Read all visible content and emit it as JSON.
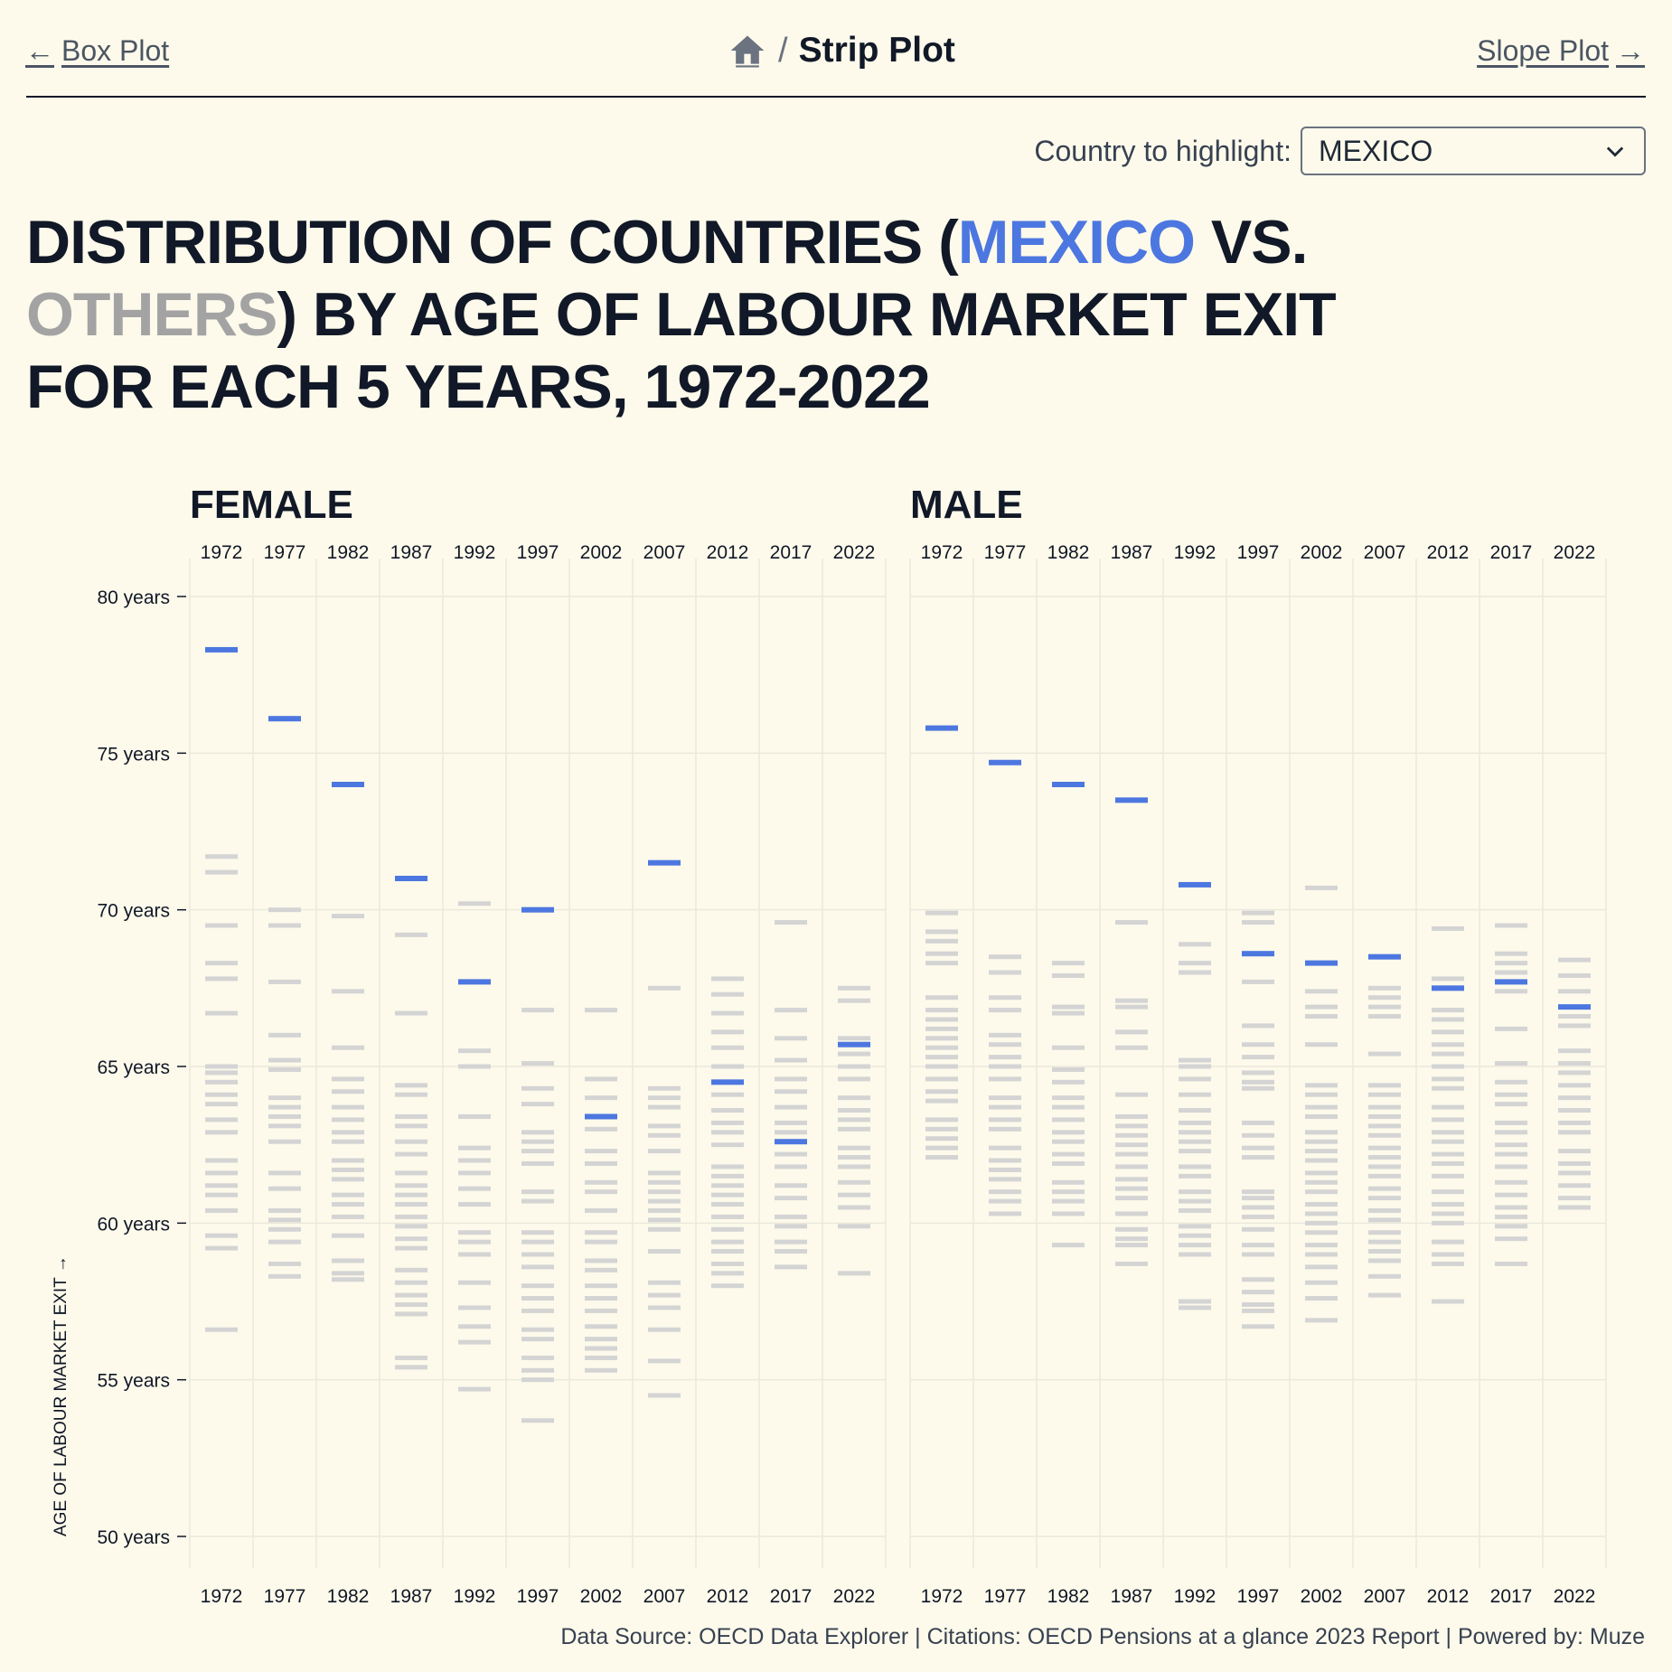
{
  "nav": {
    "prev_label": "Box Plot",
    "next_label": "Slope Plot",
    "current": "Strip Plot",
    "separator": "/"
  },
  "control": {
    "label": "Country to highlight:",
    "selected": "MEXICO"
  },
  "title": {
    "part1": "DISTRIBUTION OF COUNTRIES (",
    "highlight": "MEXICO",
    "part2": " vs. ",
    "others": "OTHERS",
    "part3": ") BY AGE OF LABOUR MARKET EXIT FOR EACH 5 YEARS, 1972-2022"
  },
  "footer": "Data Source: OECD Data Explorer | Citations: OECD Pensions at a glance 2023 Report | Powered by: Muze",
  "colors": {
    "highlight": "#4d77e0",
    "others": "#d4d4d4",
    "grid": "#ebe8dc",
    "text": "#111827"
  },
  "chart_data": {
    "type": "strip",
    "ylabel": "AGE OF LABOUR MARKET EXIT →",
    "ylim": [
      50,
      80
    ],
    "yticks": [
      {
        "value": 80,
        "label": "80 years"
      },
      {
        "value": 75,
        "label": "75 years"
      },
      {
        "value": 70,
        "label": "70 years"
      },
      {
        "value": 65,
        "label": "65 years"
      },
      {
        "value": 60,
        "label": "60 years"
      },
      {
        "value": 55,
        "label": "55 years"
      },
      {
        "value": 50,
        "label": "50 years"
      }
    ],
    "years": [
      "1972",
      "1977",
      "1982",
      "1987",
      "1992",
      "1997",
      "2002",
      "2007",
      "2012",
      "2017",
      "2022"
    ],
    "highlight_country": "MEXICO",
    "panels": [
      {
        "name": "FEMALE",
        "highlight": [
          78.3,
          76.1,
          74.0,
          71.0,
          67.7,
          70.0,
          63.4,
          71.5,
          64.5,
          62.6,
          65.7
        ],
        "others": [
          [
            71.7,
            71.2,
            69.5,
            68.3,
            67.8,
            66.7,
            65.0,
            64.8,
            64.5,
            64.1,
            63.8,
            63.3,
            62.9,
            62.0,
            61.6,
            61.2,
            60.9,
            60.4,
            59.6,
            59.2,
            56.6
          ],
          [
            70.0,
            69.5,
            67.7,
            66.0,
            65.2,
            64.9,
            64.0,
            63.7,
            63.4,
            63.1,
            62.6,
            61.6,
            61.1,
            60.4,
            60.1,
            59.8,
            59.4,
            58.7,
            58.3
          ],
          [
            69.8,
            67.4,
            65.6,
            64.6,
            64.2,
            63.7,
            63.3,
            62.9,
            62.6,
            62.0,
            61.7,
            61.4,
            60.9,
            60.6,
            60.2,
            59.6,
            58.8,
            58.4,
            58.2
          ],
          [
            69.2,
            66.7,
            64.4,
            64.1,
            63.4,
            63.1,
            62.6,
            62.2,
            61.6,
            61.2,
            60.9,
            60.6,
            60.2,
            59.9,
            59.5,
            59.2,
            58.5,
            58.1,
            57.7,
            57.4,
            57.1,
            55.7,
            55.4
          ],
          [
            70.2,
            65.5,
            65.0,
            63.4,
            62.4,
            62.0,
            61.6,
            61.1,
            60.6,
            59.7,
            59.4,
            59.0,
            58.1,
            57.3,
            56.7,
            56.2,
            54.7
          ],
          [
            66.8,
            65.1,
            64.3,
            63.8,
            62.9,
            62.6,
            62.3,
            61.9,
            61.0,
            60.7,
            59.7,
            59.4,
            59.0,
            58.6,
            58.0,
            57.6,
            57.2,
            56.6,
            56.3,
            55.7,
            55.3,
            55.0,
            53.7
          ],
          [
            66.8,
            64.6,
            64.0,
            63.0,
            62.3,
            61.9,
            61.3,
            61.0,
            60.4,
            59.7,
            59.4,
            58.8,
            58.5,
            58.0,
            57.6,
            57.2,
            56.7,
            56.3,
            56.0,
            55.7,
            55.3
          ],
          [
            67.5,
            64.3,
            64.0,
            63.7,
            63.1,
            62.8,
            62.3,
            61.6,
            61.3,
            61.0,
            60.7,
            60.4,
            60.1,
            59.8,
            59.1,
            58.1,
            57.7,
            57.3,
            56.6,
            55.6,
            54.5
          ],
          [
            67.8,
            67.3,
            66.7,
            66.1,
            65.6,
            65.0,
            64.1,
            63.6,
            63.2,
            62.9,
            62.5,
            61.8,
            61.5,
            61.2,
            60.9,
            60.6,
            60.2,
            59.8,
            59.4,
            59.1,
            58.7,
            58.4,
            58.0
          ],
          [
            69.6,
            66.8,
            65.9,
            65.2,
            64.6,
            64.2,
            63.7,
            63.2,
            62.9,
            62.2,
            61.8,
            61.2,
            60.8,
            60.2,
            59.9,
            59.4,
            59.1,
            58.6
          ],
          [
            67.5,
            67.1,
            65.9,
            65.4,
            65.0,
            64.6,
            64.0,
            63.6,
            63.3,
            63.0,
            62.4,
            62.1,
            61.8,
            61.3,
            60.9,
            60.5,
            59.9,
            58.4
          ]
        ]
      },
      {
        "name": "MALE",
        "highlight": [
          75.8,
          74.7,
          74.0,
          73.5,
          70.8,
          68.6,
          68.3,
          68.5,
          67.5,
          67.7,
          66.9
        ],
        "others": [
          [
            69.9,
            69.3,
            69.0,
            68.6,
            68.3,
            67.2,
            66.8,
            66.5,
            66.2,
            65.9,
            65.6,
            65.3,
            65.0,
            64.6,
            64.2,
            63.9,
            63.3,
            63.0,
            62.7,
            62.4,
            62.1
          ],
          [
            68.5,
            68.0,
            67.2,
            66.8,
            66.0,
            65.7,
            65.3,
            65.0,
            64.6,
            64.0,
            63.7,
            63.3,
            63.0,
            62.4,
            62.0,
            61.7,
            61.4,
            61.0,
            60.7,
            60.3
          ],
          [
            68.3,
            67.9,
            66.9,
            66.7,
            65.6,
            64.9,
            64.5,
            64.0,
            63.7,
            63.3,
            62.9,
            62.6,
            62.2,
            61.9,
            61.3,
            61.0,
            60.7,
            60.3,
            59.3
          ],
          [
            69.6,
            67.1,
            66.9,
            66.1,
            65.6,
            64.1,
            63.4,
            63.1,
            62.8,
            62.5,
            62.2,
            61.8,
            61.4,
            61.1,
            60.8,
            60.3,
            59.8,
            59.5,
            59.3,
            58.7
          ],
          [
            68.9,
            68.3,
            68.0,
            65.2,
            65.0,
            64.6,
            64.1,
            63.6,
            63.2,
            62.9,
            62.6,
            62.3,
            61.8,
            61.5,
            61.0,
            60.7,
            60.4,
            59.9,
            59.6,
            59.3,
            59.0,
            57.5,
            57.3
          ],
          [
            69.9,
            69.6,
            67.7,
            66.3,
            65.7,
            65.3,
            64.8,
            64.5,
            64.3,
            63.2,
            62.8,
            62.4,
            62.1,
            61.0,
            60.8,
            60.5,
            60.2,
            59.8,
            59.3,
            59.0,
            58.2,
            57.8,
            57.4,
            57.2,
            56.7
          ],
          [
            70.7,
            67.4,
            66.9,
            66.6,
            65.7,
            64.4,
            64.1,
            63.7,
            63.4,
            62.9,
            62.6,
            62.3,
            62.0,
            61.6,
            61.3,
            61.0,
            60.6,
            60.3,
            60.0,
            59.7,
            59.3,
            59.0,
            58.6,
            58.1,
            57.6,
            56.9
          ],
          [
            67.5,
            67.2,
            66.9,
            66.6,
            65.4,
            64.4,
            64.1,
            63.7,
            63.4,
            63.1,
            62.8,
            62.4,
            62.1,
            61.8,
            61.5,
            61.1,
            60.8,
            60.4,
            60.1,
            59.7,
            59.4,
            59.1,
            58.8,
            58.3,
            57.7
          ],
          [
            69.4,
            67.8,
            66.8,
            66.5,
            66.1,
            65.7,
            65.4,
            65.0,
            64.6,
            64.3,
            63.7,
            63.3,
            62.9,
            62.6,
            62.2,
            61.9,
            61.5,
            61.0,
            60.6,
            60.3,
            60.0,
            59.4,
            59.0,
            58.7,
            57.5
          ],
          [
            69.5,
            68.6,
            68.3,
            68.0,
            67.4,
            66.2,
            65.1,
            64.5,
            64.1,
            63.8,
            63.2,
            62.9,
            62.5,
            62.2,
            61.8,
            61.3,
            60.9,
            60.5,
            60.2,
            59.9,
            59.5,
            58.7
          ],
          [
            68.4,
            67.9,
            67.4,
            66.6,
            66.3,
            65.5,
            65.1,
            64.8,
            64.4,
            64.0,
            63.6,
            63.2,
            62.9,
            62.3,
            61.9,
            61.6,
            61.2,
            60.8,
            60.5
          ]
        ]
      }
    ]
  }
}
